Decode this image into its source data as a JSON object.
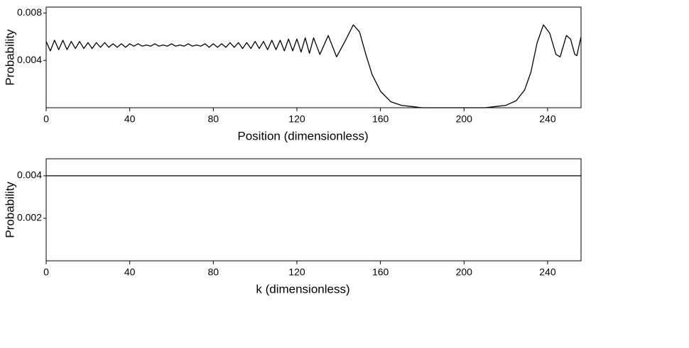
{
  "chart_data": [
    {
      "type": "line",
      "x_label": "Position (dimensionless)",
      "y_label": "Probability",
      "xlim": [
        0,
        256
      ],
      "ylim": [
        0,
        0.0085
      ],
      "xticks": [
        0,
        40,
        80,
        120,
        160,
        200,
        240
      ],
      "yticks": [
        0.004,
        0.008
      ],
      "x": [
        0,
        2,
        4,
        6,
        8,
        10,
        12,
        14,
        16,
        18,
        20,
        22,
        24,
        26,
        28,
        30,
        32,
        34,
        36,
        38,
        40,
        42,
        44,
        46,
        48,
        50,
        52,
        54,
        56,
        58,
        60,
        62,
        64,
        66,
        68,
        70,
        72,
        74,
        76,
        78,
        80,
        82,
        84,
        86,
        88,
        90,
        92,
        94,
        96,
        98,
        100,
        102,
        104,
        106,
        108,
        110,
        112,
        114,
        116,
        118,
        120,
        122,
        124,
        126,
        128,
        131,
        135,
        139,
        143,
        147,
        150,
        153,
        156,
        160,
        165,
        170,
        175,
        180,
        190,
        200,
        210,
        215,
        220,
        225,
        229,
        232,
        235,
        238,
        241,
        244,
        246,
        249,
        251,
        253,
        254,
        256
      ],
      "series": [
        {
          "color": "#000000",
          "values": [
            0.0056,
            0.0048,
            0.0057,
            0.0049,
            0.0057,
            0.0049,
            0.0056,
            0.005,
            0.0056,
            0.005,
            0.0055,
            0.005,
            0.0055,
            0.0051,
            0.0055,
            0.0051,
            0.0054,
            0.0051,
            0.0054,
            0.0051,
            0.0054,
            0.0052,
            0.0054,
            0.0052,
            0.0053,
            0.0052,
            0.0054,
            0.0052,
            0.0053,
            0.0052,
            0.0054,
            0.0052,
            0.0053,
            0.0052,
            0.0054,
            0.0052,
            0.0053,
            0.0052,
            0.0054,
            0.0051,
            0.0054,
            0.0051,
            0.0054,
            0.0051,
            0.0055,
            0.0051,
            0.0055,
            0.005,
            0.0055,
            0.005,
            0.0056,
            0.005,
            0.0056,
            0.0049,
            0.0057,
            0.0049,
            0.0057,
            0.0048,
            0.0058,
            0.0048,
            0.0058,
            0.0047,
            0.0059,
            0.0046,
            0.0059,
            0.0045,
            0.0061,
            0.0043,
            0.0056,
            0.007,
            0.0064,
            0.0045,
            0.0028,
            0.0014,
            0.0005,
            0.0002,
            0.0001,
            0,
            0,
            0,
            0,
            0.0001,
            0.0002,
            0.0006,
            0.0015,
            0.003,
            0.0055,
            0.007,
            0.0063,
            0.0045,
            0.0043,
            0.0061,
            0.0058,
            0.0045,
            0.0044,
            0.006
          ]
        }
      ]
    },
    {
      "type": "line",
      "x_label": "k (dimensionless)",
      "y_label": "Probability",
      "xlim": [
        0,
        256
      ],
      "ylim": [
        0,
        0.0048
      ],
      "xticks": [
        0,
        40,
        80,
        120,
        160,
        200,
        240
      ],
      "yticks": [
        0.002,
        0.004
      ],
      "x": [
        0,
        256
      ],
      "series": [
        {
          "color": "#000000",
          "values": [
            0.004,
            0.004
          ]
        }
      ]
    }
  ]
}
